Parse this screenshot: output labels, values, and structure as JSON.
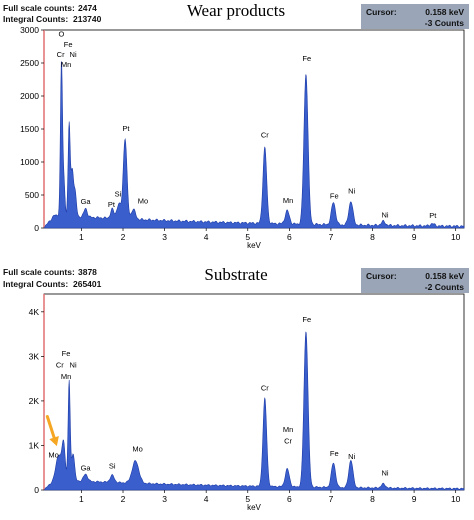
{
  "chart_data": [
    {
      "type": "area",
      "title": "Wear products",
      "full_scale_label": "Full scale counts:",
      "full_scale_value": "2474",
      "integral_label": "Integral Counts:",
      "integral_value": "213740",
      "cursor_label": "Cursor:",
      "cursor_value": "0.158 keV",
      "cursor_counts": "-3 Counts",
      "xlabel": "keV",
      "xlim": [
        0.1,
        10.2
      ],
      "ylim": [
        0,
        3000
      ],
      "xticks": [
        "1",
        "2",
        "3",
        "4",
        "5",
        "6",
        "7",
        "8",
        "9",
        "10"
      ],
      "yticks": [
        {
          "v": 0,
          "label": "0"
        },
        {
          "v": 500,
          "label": "500"
        },
        {
          "v": 1000,
          "label": "1000"
        },
        {
          "v": 1500,
          "label": "1500"
        },
        {
          "v": 2000,
          "label": "2000"
        },
        {
          "v": 2500,
          "label": "2500"
        },
        {
          "v": 3000,
          "label": "3000"
        }
      ],
      "baseline": 170,
      "peaks": [
        {
          "x": 0.52,
          "h": 2350,
          "w": 0.025
        },
        {
          "x": 0.58,
          "h": 500,
          "w": 0.025
        },
        {
          "x": 0.705,
          "h": 1400,
          "w": 0.025
        },
        {
          "x": 0.78,
          "h": 700,
          "w": 0.03
        },
        {
          "x": 0.85,
          "h": 350,
          "w": 0.03
        },
        {
          "x": 1.1,
          "h": 130,
          "w": 0.04
        },
        {
          "x": 1.74,
          "h": 140,
          "w": 0.04
        },
        {
          "x": 1.9,
          "h": 220,
          "w": 0.05
        },
        {
          "x": 2.05,
          "h": 1220,
          "w": 0.045
        },
        {
          "x": 2.25,
          "h": 150,
          "w": 0.05
        },
        {
          "x": 5.41,
          "h": 1150,
          "w": 0.045
        },
        {
          "x": 5.95,
          "h": 200,
          "w": 0.05
        },
        {
          "x": 6.4,
          "h": 2280,
          "w": 0.05
        },
        {
          "x": 7.06,
          "h": 340,
          "w": 0.05
        },
        {
          "x": 7.48,
          "h": 360,
          "w": 0.05
        },
        {
          "x": 8.26,
          "h": 60,
          "w": 0.05
        },
        {
          "x": 9.44,
          "h": 35,
          "w": 0.05
        }
      ],
      "annotations": [
        {
          "text": "O",
          "x": 0.52,
          "y": 2900
        },
        {
          "text": "Fe",
          "x": 0.68,
          "y": 2740
        },
        {
          "text": "Cr",
          "x": 0.5,
          "y": 2590
        },
        {
          "text": "Ni",
          "x": 0.8,
          "y": 2590
        },
        {
          "text": "Mn",
          "x": 0.63,
          "y": 2440
        },
        {
          "text": "Ga",
          "x": 1.1,
          "y": 360
        },
        {
          "text": "Pt",
          "x": 1.72,
          "y": 320
        },
        {
          "text": "Si",
          "x": 1.88,
          "y": 480
        },
        {
          "text": "Pt",
          "x": 2.07,
          "y": 1470
        },
        {
          "text": "Mo",
          "x": 2.48,
          "y": 370
        },
        {
          "text": "Cr",
          "x": 5.41,
          "y": 1370
        },
        {
          "text": "Mn",
          "x": 5.97,
          "y": 380
        },
        {
          "text": "Fe",
          "x": 6.42,
          "y": 2530
        },
        {
          "text": "Fe",
          "x": 7.08,
          "y": 450
        },
        {
          "text": "Ni",
          "x": 7.5,
          "y": 520
        },
        {
          "text": "Ni",
          "x": 8.3,
          "y": 160
        },
        {
          "text": "Pt",
          "x": 9.45,
          "y": 150
        }
      ]
    },
    {
      "type": "area",
      "title": "Substrate",
      "full_scale_label": "Full scale counts:",
      "full_scale_value": "3878",
      "integral_label": "Integral Counts:",
      "integral_value": "265401",
      "cursor_label": "Cursor:",
      "cursor_value": "0.158 keV",
      "cursor_counts": "-2 Counts",
      "xlabel": "keV",
      "xlim": [
        0.1,
        10.2
      ],
      "ylim": [
        0,
        4400
      ],
      "xticks": [
        "1",
        "2",
        "3",
        "4",
        "5",
        "6",
        "7",
        "8",
        "9",
        "10"
      ],
      "yticks": [
        {
          "v": 0,
          "label": "0"
        },
        {
          "v": 1000,
          "label": "1K"
        },
        {
          "v": 2000,
          "label": "2K"
        },
        {
          "v": 3000,
          "label": "3K"
        },
        {
          "v": 4000,
          "label": "4K"
        }
      ],
      "baseline": 200,
      "peaks": [
        {
          "x": 0.45,
          "h": 560,
          "w": 0.06
        },
        {
          "x": 0.57,
          "h": 820,
          "w": 0.04
        },
        {
          "x": 0.705,
          "h": 2240,
          "w": 0.025
        },
        {
          "x": 0.8,
          "h": 620,
          "w": 0.035
        },
        {
          "x": 1.1,
          "h": 160,
          "w": 0.05
        },
        {
          "x": 1.74,
          "h": 160,
          "w": 0.05
        },
        {
          "x": 2.3,
          "h": 500,
          "w": 0.08
        },
        {
          "x": 5.41,
          "h": 1980,
          "w": 0.045
        },
        {
          "x": 5.95,
          "h": 400,
          "w": 0.05
        },
        {
          "x": 6.4,
          "h": 3500,
          "w": 0.05
        },
        {
          "x": 7.06,
          "h": 550,
          "w": 0.05
        },
        {
          "x": 7.48,
          "h": 620,
          "w": 0.05
        },
        {
          "x": 8.26,
          "h": 90,
          "w": 0.05
        }
      ],
      "annotations": [
        {
          "text": "Fe",
          "x": 0.63,
          "y": 3010
        },
        {
          "text": "Cr",
          "x": 0.48,
          "y": 2750
        },
        {
          "text": "Ni",
          "x": 0.8,
          "y": 2750
        },
        {
          "text": "Mn",
          "x": 0.63,
          "y": 2490
        },
        {
          "text": "Mo",
          "x": 0.33,
          "y": 730
        },
        {
          "text": "Ga",
          "x": 1.1,
          "y": 440
        },
        {
          "text": "Si",
          "x": 1.74,
          "y": 480
        },
        {
          "text": "Mo",
          "x": 2.35,
          "y": 860
        },
        {
          "text": "Cr",
          "x": 5.41,
          "y": 2230
        },
        {
          "text": "Mn",
          "x": 5.97,
          "y": 1300
        },
        {
          "text": "Cr",
          "x": 5.97,
          "y": 1040
        },
        {
          "text": "Fe",
          "x": 6.42,
          "y": 3770
        },
        {
          "text": "Fe",
          "x": 7.08,
          "y": 760
        },
        {
          "text": "Ni",
          "x": 7.5,
          "y": 700
        },
        {
          "text": "Ni",
          "x": 8.3,
          "y": 330
        }
      ],
      "arrow": {
        "color": "#f5a623",
        "x1": 0.18,
        "y1": 1650,
        "x2": 0.38,
        "y2": 1070
      }
    }
  ],
  "colors": {
    "fill": "#3a5fcd",
    "stroke": "#1c3aa6",
    "cursor_box": "#9aa6b8",
    "axis_left": "#e07070"
  }
}
